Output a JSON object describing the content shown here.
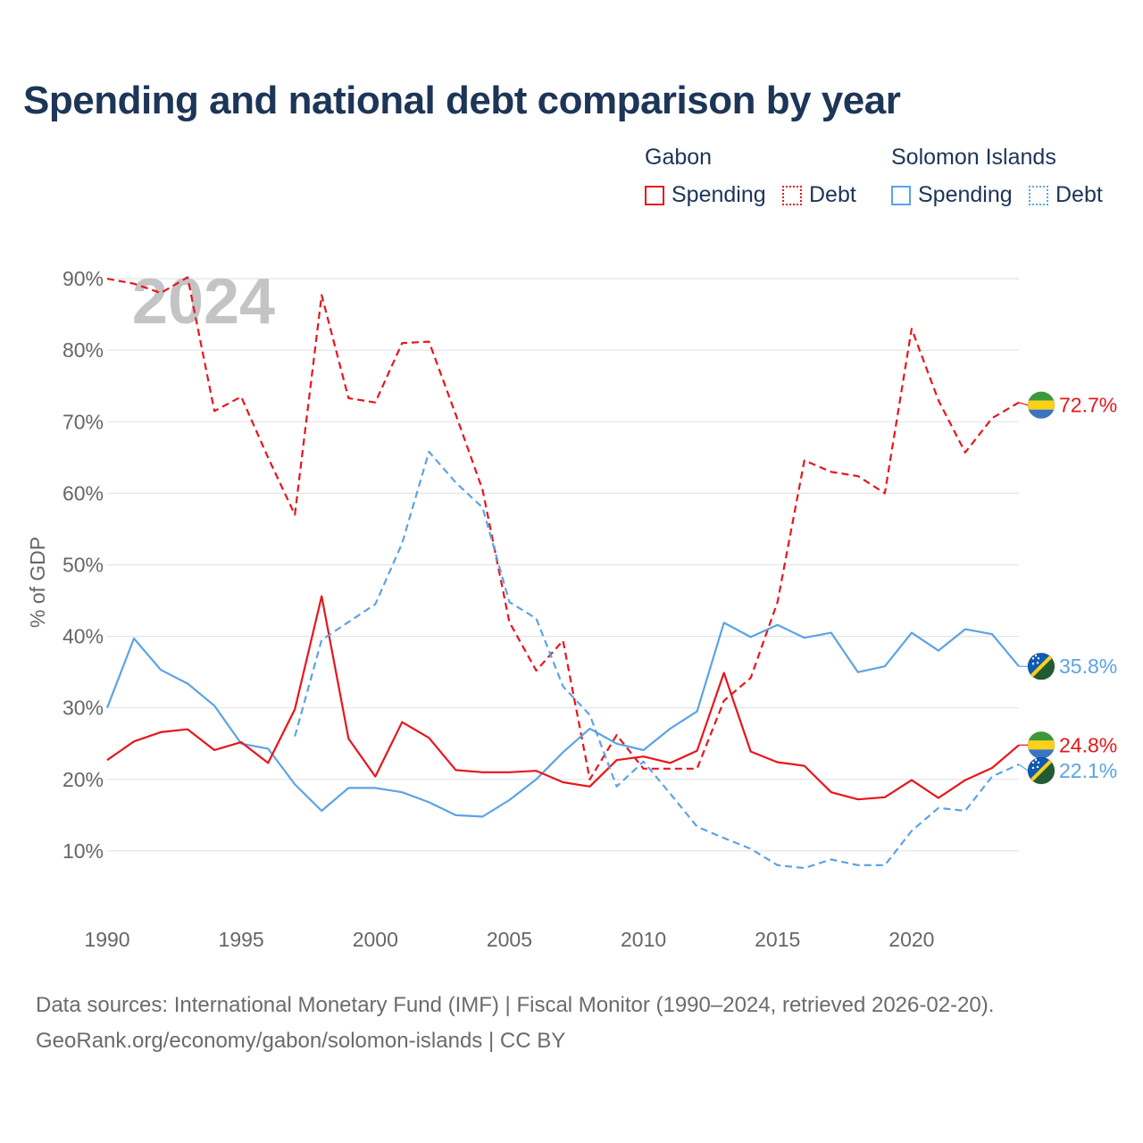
{
  "title": "Spending and national debt comparison by year",
  "legend": {
    "groups": [
      {
        "name": "Gabon",
        "items": [
          {
            "label": "Spending",
            "color": "#e8151b",
            "style": "solid"
          },
          {
            "label": "Debt",
            "color": "#e8151b",
            "style": "dotted"
          }
        ]
      },
      {
        "name": "Solomon Islands",
        "items": [
          {
            "label": "Spending",
            "color": "#5ba3e6",
            "style": "solid"
          },
          {
            "label": "Debt",
            "color": "#5ba3e6",
            "style": "dotted"
          }
        ]
      }
    ]
  },
  "source": {
    "line1": "Data sources: International Monetary Fund (IMF) | Fiscal Monitor (1990–2024, retrieved 2026-02-20).",
    "line2": "GeoRank.org/economy/gabon/solomon-islands | CC BY"
  },
  "chart_data": {
    "type": "line",
    "title": "Spending and national debt comparison by year",
    "year_label": "2024",
    "ylabel": "% of GDP",
    "xlabel": "",
    "xlim": [
      1990,
      2024
    ],
    "ylim": [
      0,
      90
    ],
    "grid": true,
    "x_ticks": [
      1990,
      1995,
      2000,
      2005,
      2010,
      2015,
      2020
    ],
    "y_ticks": [
      {
        "value": 10,
        "label": "10%"
      },
      {
        "value": 20,
        "label": "20%"
      },
      {
        "value": 30,
        "label": "30%"
      },
      {
        "value": 40,
        "label": "40%"
      },
      {
        "value": 50,
        "label": "50%"
      },
      {
        "value": 60,
        "label": "60%"
      },
      {
        "value": 70,
        "label": "70%"
      },
      {
        "value": 80,
        "label": "80%"
      },
      {
        "value": 90,
        "label": "90%"
      }
    ],
    "x": [
      1990,
      1991,
      1992,
      1993,
      1994,
      1995,
      1996,
      1997,
      1998,
      1999,
      2000,
      2001,
      2002,
      2003,
      2004,
      2005,
      2006,
      2007,
      2008,
      2009,
      2010,
      2011,
      2012,
      2013,
      2014,
      2015,
      2016,
      2017,
      2018,
      2019,
      2020,
      2021,
      2022,
      2023,
      2024
    ],
    "series": [
      {
        "name": "Gabon Debt",
        "country": "Gabon",
        "flag": "gabon",
        "color": "#e8151b",
        "dash": "dashed",
        "end_label": "72.7%",
        "values": [
          90.0,
          89.3,
          88.0,
          90.2,
          71.5,
          73.5,
          65.0,
          57.0,
          87.7,
          73.3,
          72.7,
          81.0,
          81.2,
          71.0,
          60.5,
          42.0,
          35.2,
          39.4,
          20.0,
          26.2,
          21.5,
          21.5,
          21.5,
          31.0,
          34.2,
          44.8,
          64.6,
          63.0,
          62.4,
          60.0,
          83.0,
          73.0,
          65.7,
          70.5,
          72.7
        ]
      },
      {
        "name": "Solomon Islands Spending",
        "country": "Solomon Islands",
        "flag": "solomon",
        "color": "#5ba3e6",
        "dash": "solid",
        "end_label": "35.8%",
        "values": [
          30.0,
          39.7,
          35.3,
          33.4,
          30.3,
          25.0,
          24.3,
          19.3,
          15.6,
          18.8,
          18.8,
          18.2,
          16.8,
          15.0,
          14.8,
          17.1,
          20.0,
          23.8,
          27.1,
          25.0,
          24.1,
          27.1,
          29.5,
          41.9,
          39.9,
          41.6,
          39.8,
          40.5,
          35.0,
          35.8,
          40.5,
          38.0,
          41.0,
          40.3,
          35.8
        ]
      },
      {
        "name": "Gabon Spending",
        "country": "Gabon",
        "flag": "gabon",
        "color": "#e8151b",
        "dash": "solid",
        "end_label": "24.8%",
        "values": [
          22.7,
          25.3,
          26.6,
          27.0,
          24.1,
          25.2,
          22.3,
          29.8,
          45.6,
          25.7,
          20.4,
          28.0,
          25.8,
          21.3,
          21.0,
          21.0,
          21.2,
          19.6,
          19.0,
          22.7,
          23.2,
          22.3,
          24.0,
          34.9,
          23.9,
          22.4,
          21.9,
          18.2,
          17.2,
          17.5,
          19.9,
          17.4,
          19.9,
          21.6,
          24.8
        ]
      },
      {
        "name": "Solomon Islands Debt",
        "country": "Solomon Islands",
        "flag": "solomon",
        "color": "#5ba3e6",
        "dash": "dashed",
        "end_label": "22.1%",
        "values": [
          null,
          null,
          null,
          null,
          null,
          null,
          null,
          26.0,
          39.5,
          42.0,
          44.5,
          53.0,
          65.8,
          61.5,
          58.0,
          44.8,
          42.5,
          33.0,
          29.0,
          19.0,
          22.5,
          18.0,
          13.4,
          11.8,
          10.3,
          8.0,
          7.6,
          8.8,
          8.0,
          8.0,
          12.8,
          16.0,
          15.6,
          20.4,
          22.1
        ]
      }
    ]
  }
}
